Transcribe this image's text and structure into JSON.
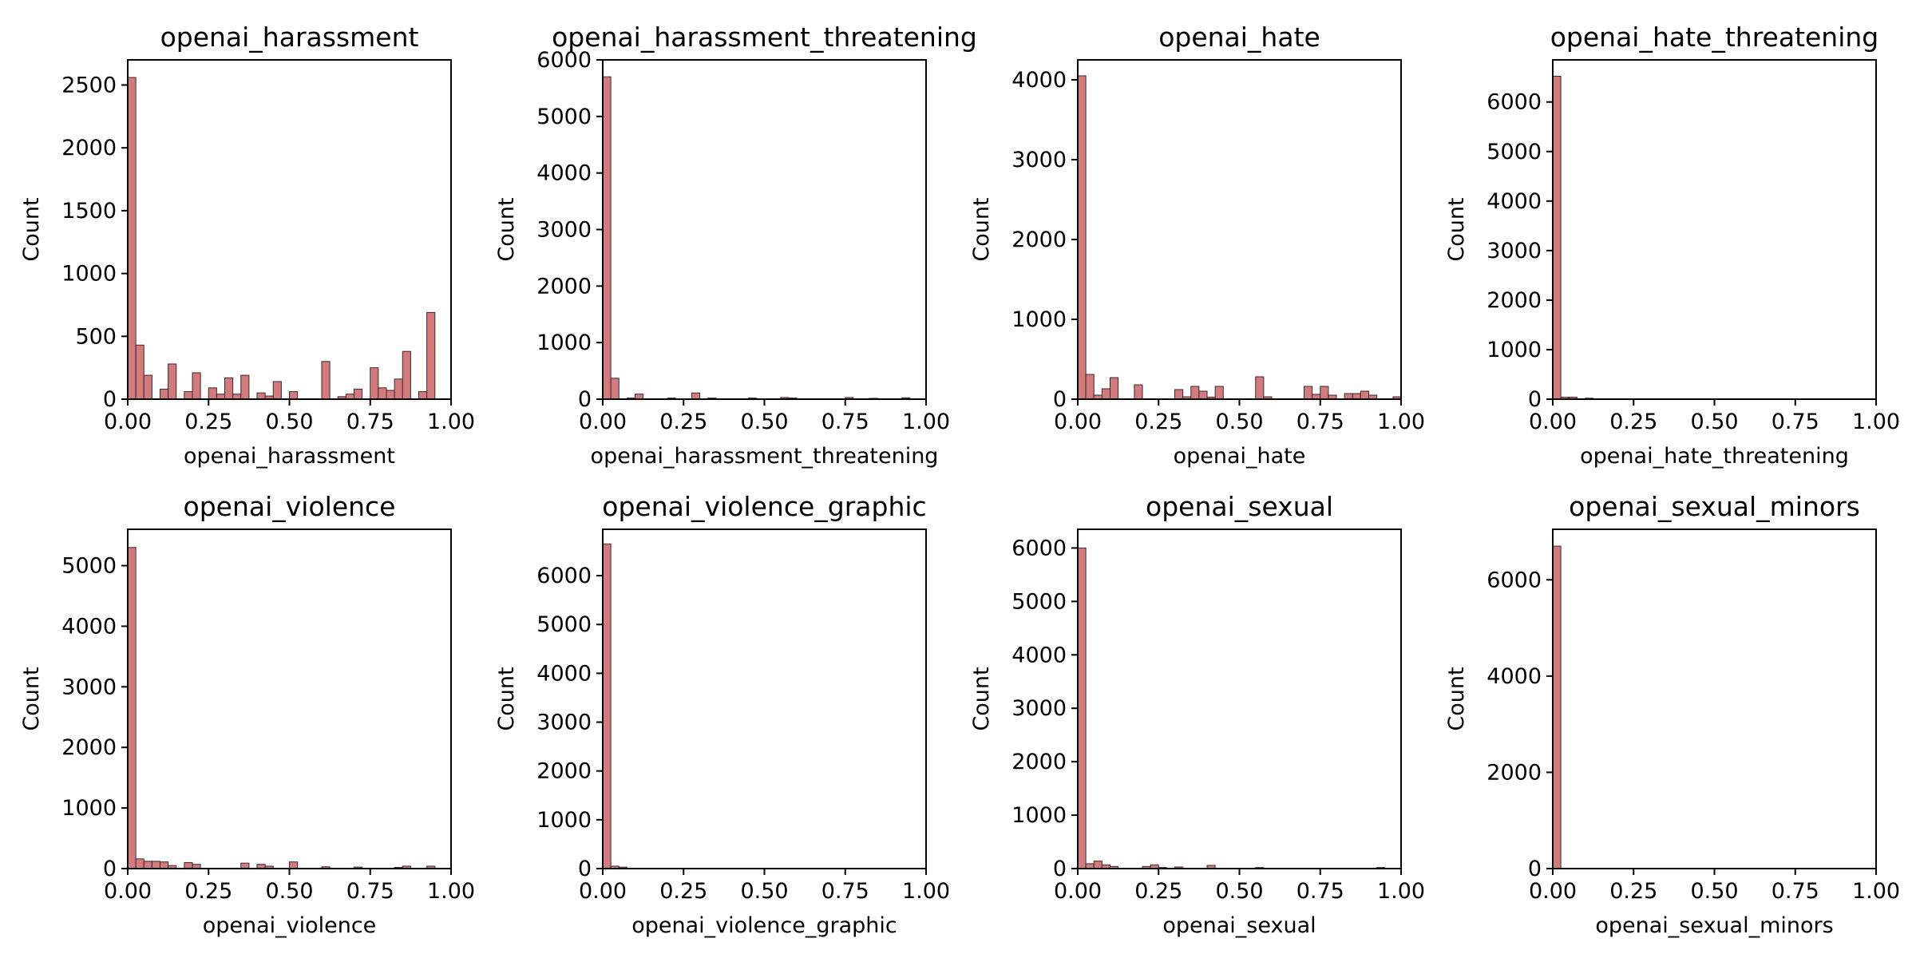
{
  "figure": {
    "bar_color": "#d37a7c",
    "bar_edge_color": "#3a2a2a",
    "axis_color": "#000000"
  },
  "chart_data": [
    {
      "type": "bar",
      "title": "openai_harassment",
      "xlabel": "openai_harassment",
      "ylabel": "Count",
      "xlim": [
        0,
        1
      ],
      "ylim": [
        0,
        2700
      ],
      "xticks": [
        "0.00",
        "0.25",
        "0.50",
        "0.75",
        "1.00"
      ],
      "yticks": [
        0,
        500,
        1000,
        1500,
        2000,
        2500
      ],
      "bin_width": 0.025,
      "values": [
        2560,
        430,
        190,
        0,
        80,
        280,
        0,
        60,
        210,
        0,
        90,
        40,
        170,
        40,
        190,
        0,
        50,
        25,
        140,
        0,
        60,
        0,
        0,
        0,
        300,
        0,
        20,
        40,
        80,
        0,
        250,
        90,
        70,
        160,
        380,
        0,
        60,
        690,
        0,
        0
      ],
      "grid": false,
      "legend": "none"
    },
    {
      "type": "bar",
      "title": "openai_harassment_threatening",
      "xlabel": "openai_harassment_threatening",
      "ylabel": "Count",
      "xlim": [
        0,
        1
      ],
      "ylim": [
        0,
        6000
      ],
      "xticks": [
        "0.00",
        "0.25",
        "0.50",
        "0.75",
        "1.00"
      ],
      "yticks": [
        0,
        1000,
        2000,
        3000,
        4000,
        5000,
        6000
      ],
      "bin_width": 0.025,
      "values": [
        5700,
        370,
        0,
        20,
        90,
        0,
        0,
        0,
        20,
        0,
        0,
        110,
        0,
        20,
        0,
        0,
        0,
        0,
        20,
        0,
        0,
        0,
        30,
        20,
        0,
        0,
        0,
        0,
        0,
        0,
        30,
        0,
        0,
        15,
        0,
        0,
        0,
        25,
        0,
        0
      ],
      "grid": false,
      "legend": "none"
    },
    {
      "type": "bar",
      "title": "openai_hate",
      "xlabel": "openai_hate",
      "ylabel": "Count",
      "xlim": [
        0,
        1
      ],
      "ylim": [
        0,
        4250
      ],
      "xticks": [
        "0.00",
        "0.25",
        "0.50",
        "0.75",
        "1.00"
      ],
      "yticks": [
        0,
        1000,
        2000,
        3000,
        4000
      ],
      "bin_width": 0.025,
      "values": [
        4050,
        310,
        50,
        130,
        270,
        0,
        0,
        180,
        0,
        0,
        0,
        0,
        120,
        30,
        160,
        100,
        25,
        160,
        0,
        0,
        0,
        0,
        280,
        30,
        0,
        0,
        0,
        0,
        160,
        60,
        160,
        50,
        0,
        70,
        70,
        100,
        50,
        0,
        0,
        30
      ],
      "grid": false,
      "legend": "none"
    },
    {
      "type": "bar",
      "title": "openai_hate_threatening",
      "xlabel": "openai_hate_threatening",
      "ylabel": "Count",
      "xlim": [
        0,
        1
      ],
      "ylim": [
        0,
        6850
      ],
      "xticks": [
        "0.00",
        "0.25",
        "0.50",
        "0.75",
        "1.00"
      ],
      "yticks": [
        0,
        1000,
        2000,
        3000,
        4000,
        5000,
        6000
      ],
      "bin_width": 0.025,
      "values": [
        6520,
        40,
        40,
        0,
        20,
        0,
        0,
        0,
        0,
        0,
        0,
        0,
        0,
        0,
        0,
        0,
        0,
        0,
        0,
        0,
        0,
        0,
        0,
        0,
        0,
        0,
        0,
        0,
        0,
        0,
        0,
        0,
        0,
        0,
        0,
        0,
        0,
        0,
        0,
        0
      ],
      "grid": false,
      "legend": "none"
    },
    {
      "type": "bar",
      "title": "openai_violence",
      "xlabel": "openai_violence",
      "ylabel": "Count",
      "xlim": [
        0,
        1
      ],
      "ylim": [
        0,
        5600
      ],
      "xticks": [
        "0.00",
        "0.25",
        "0.50",
        "0.75",
        "1.00"
      ],
      "yticks": [
        0,
        1000,
        2000,
        3000,
        4000,
        5000
      ],
      "bin_width": 0.025,
      "values": [
        5300,
        160,
        120,
        120,
        110,
        50,
        0,
        100,
        70,
        0,
        0,
        0,
        0,
        0,
        90,
        0,
        70,
        40,
        0,
        0,
        110,
        0,
        0,
        0,
        30,
        0,
        0,
        0,
        25,
        0,
        0,
        0,
        0,
        20,
        40,
        0,
        0,
        40,
        0,
        0
      ],
      "grid": false,
      "legend": "none"
    },
    {
      "type": "bar",
      "title": "openai_violence_graphic",
      "xlabel": "openai_violence_graphic",
      "ylabel": "Count",
      "xlim": [
        0,
        1
      ],
      "ylim": [
        0,
        6950
      ],
      "xticks": [
        "0.00",
        "0.25",
        "0.50",
        "0.75",
        "1.00"
      ],
      "yticks": [
        0,
        1000,
        2000,
        3000,
        4000,
        5000,
        6000
      ],
      "bin_width": 0.025,
      "values": [
        6650,
        50,
        30,
        0,
        0,
        0,
        0,
        0,
        0,
        0,
        0,
        0,
        0,
        0,
        0,
        0,
        0,
        0,
        0,
        0,
        0,
        0,
        0,
        0,
        0,
        0,
        0,
        0,
        0,
        0,
        0,
        0,
        0,
        0,
        0,
        0,
        0,
        0,
        0,
        0
      ],
      "grid": false,
      "legend": "none"
    },
    {
      "type": "bar",
      "title": "openai_sexual",
      "xlabel": "openai_sexual",
      "ylabel": "Count",
      "xlim": [
        0,
        1
      ],
      "ylim": [
        0,
        6350
      ],
      "xticks": [
        "0.00",
        "0.25",
        "0.50",
        "0.75",
        "1.00"
      ],
      "yticks": [
        0,
        1000,
        2000,
        3000,
        4000,
        5000,
        6000
      ],
      "bin_width": 0.025,
      "values": [
        6000,
        90,
        140,
        70,
        40,
        0,
        0,
        0,
        40,
        70,
        20,
        0,
        30,
        0,
        0,
        0,
        60,
        0,
        0,
        0,
        0,
        0,
        20,
        0,
        0,
        0,
        0,
        0,
        0,
        0,
        0,
        0,
        0,
        0,
        0,
        0,
        0,
        20,
        0,
        0
      ],
      "grid": false,
      "legend": "none"
    },
    {
      "type": "bar",
      "title": "openai_sexual_minors",
      "xlabel": "openai_sexual_minors",
      "ylabel": "Count",
      "xlim": [
        0,
        1
      ],
      "ylim": [
        0,
        7050
      ],
      "xticks": [
        "0.00",
        "0.25",
        "0.50",
        "0.75",
        "1.00"
      ],
      "yticks": [
        0,
        2000,
        4000,
        6000
      ],
      "bin_width": 0.025,
      "values": [
        6700,
        0,
        0,
        0,
        0,
        0,
        0,
        0,
        0,
        0,
        0,
        0,
        0,
        0,
        0,
        0,
        0,
        0,
        0,
        0,
        0,
        0,
        0,
        0,
        0,
        0,
        0,
        0,
        0,
        0,
        0,
        0,
        0,
        0,
        0,
        0,
        0,
        0,
        0,
        0
      ],
      "grid": false,
      "legend": "none"
    }
  ]
}
